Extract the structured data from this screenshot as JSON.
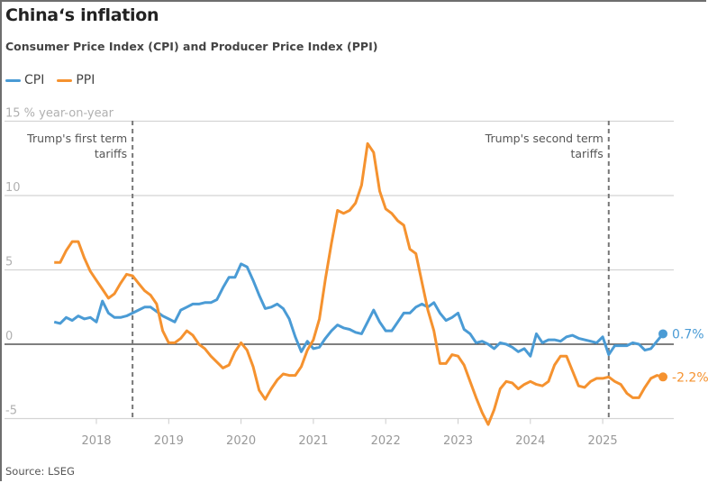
{
  "header": {
    "title": "China‘s inflation",
    "subtitle": "Consumer Price Index (CPI) and Producer Price Index (PPI)"
  },
  "legend": [
    {
      "label": "CPI",
      "color": "#4a9bd5"
    },
    {
      "label": "PPI",
      "color": "#f5922f"
    }
  ],
  "source": "Source: LSEG",
  "chart_data": {
    "type": "line",
    "title": "China‘s inflation",
    "subtitle": "Consumer Price Index (CPI) and Producer Price Index (PPI)",
    "ylabel": "% year-on-year",
    "ylim": [
      -5,
      15
    ],
    "yticks": [
      -5,
      0,
      5,
      10,
      15
    ],
    "ytick_labels": [
      "-5",
      "0",
      "5",
      "10",
      "15 % year-on-year"
    ],
    "xticks": [
      "2018",
      "2019",
      "2020",
      "2021",
      "2022",
      "2023",
      "2024",
      "2025"
    ],
    "x_start": "2017-06",
    "x_end": "2025-11",
    "frequency": "monthly",
    "grid": true,
    "legend_position": "top-left",
    "annotations": [
      {
        "date": "2018-07",
        "text_lines": [
          "Trump's first term",
          "tariffs"
        ]
      },
      {
        "date": "2025-02",
        "text_lines": [
          "Trump's second term",
          "tariffs"
        ]
      }
    ],
    "series": [
      {
        "name": "CPI",
        "color": "#4a9bd5",
        "end_label": "0.7%",
        "values": [
          1.5,
          1.4,
          1.8,
          1.6,
          1.9,
          1.7,
          1.8,
          1.5,
          2.9,
          2.1,
          1.8,
          1.8,
          1.9,
          2.1,
          2.3,
          2.5,
          2.5,
          2.2,
          1.9,
          1.7,
          1.5,
          2.3,
          2.5,
          2.7,
          2.7,
          2.8,
          2.8,
          3.0,
          3.8,
          4.5,
          4.5,
          5.4,
          5.2,
          4.3,
          3.3,
          2.4,
          2.5,
          2.7,
          2.4,
          1.7,
          0.5,
          -0.5,
          0.2,
          -0.3,
          -0.2,
          0.4,
          0.9,
          1.3,
          1.1,
          1.0,
          0.8,
          0.7,
          1.5,
          2.3,
          1.5,
          0.9,
          0.9,
          1.5,
          2.1,
          2.1,
          2.5,
          2.7,
          2.5,
          2.8,
          2.1,
          1.6,
          1.8,
          2.1,
          1.0,
          0.7,
          0.1,
          0.2,
          0.0,
          -0.3,
          0.1,
          0.0,
          -0.2,
          -0.5,
          -0.3,
          -0.8,
          0.7,
          0.1,
          0.3,
          0.3,
          0.2,
          0.5,
          0.6,
          0.4,
          0.3,
          0.2,
          0.1,
          0.5,
          -0.7,
          -0.1,
          -0.1,
          -0.1,
          0.1,
          0.0,
          -0.4,
          -0.3,
          0.2,
          0.7
        ]
      },
      {
        "name": "PPI",
        "color": "#f5922f",
        "end_label": "-2.2%",
        "values": [
          5.5,
          5.5,
          6.3,
          6.9,
          6.9,
          5.8,
          4.9,
          4.3,
          3.7,
          3.1,
          3.4,
          4.1,
          4.7,
          4.6,
          4.1,
          3.6,
          3.3,
          2.7,
          0.9,
          0.1,
          0.1,
          0.4,
          0.9,
          0.6,
          0.0,
          -0.3,
          -0.8,
          -1.2,
          -1.6,
          -1.4,
          -0.5,
          0.1,
          -0.4,
          -1.5,
          -3.1,
          -3.7,
          -3.0,
          -2.4,
          -2.0,
          -2.1,
          -2.1,
          -1.5,
          -0.4,
          0.3,
          1.7,
          4.4,
          6.8,
          9.0,
          8.8,
          9.0,
          9.5,
          10.7,
          13.5,
          12.9,
          10.3,
          9.1,
          8.8,
          8.3,
          8.0,
          6.4,
          6.1,
          4.2,
          2.3,
          0.9,
          -1.3,
          -1.3,
          -0.7,
          -0.8,
          -1.4,
          -2.5,
          -3.6,
          -4.6,
          -5.4,
          -4.4,
          -3.0,
          -2.5,
          -2.6,
          -3.0,
          -2.7,
          -2.5,
          -2.7,
          -2.8,
          -2.5,
          -1.4,
          -0.8,
          -0.8,
          -1.8,
          -2.8,
          -2.9,
          -2.5,
          -2.3,
          -2.3,
          -2.2,
          -2.5,
          -2.7,
          -3.3,
          -3.6,
          -3.6,
          -2.9,
          -2.3,
          -2.1,
          -2.2
        ]
      }
    ]
  }
}
